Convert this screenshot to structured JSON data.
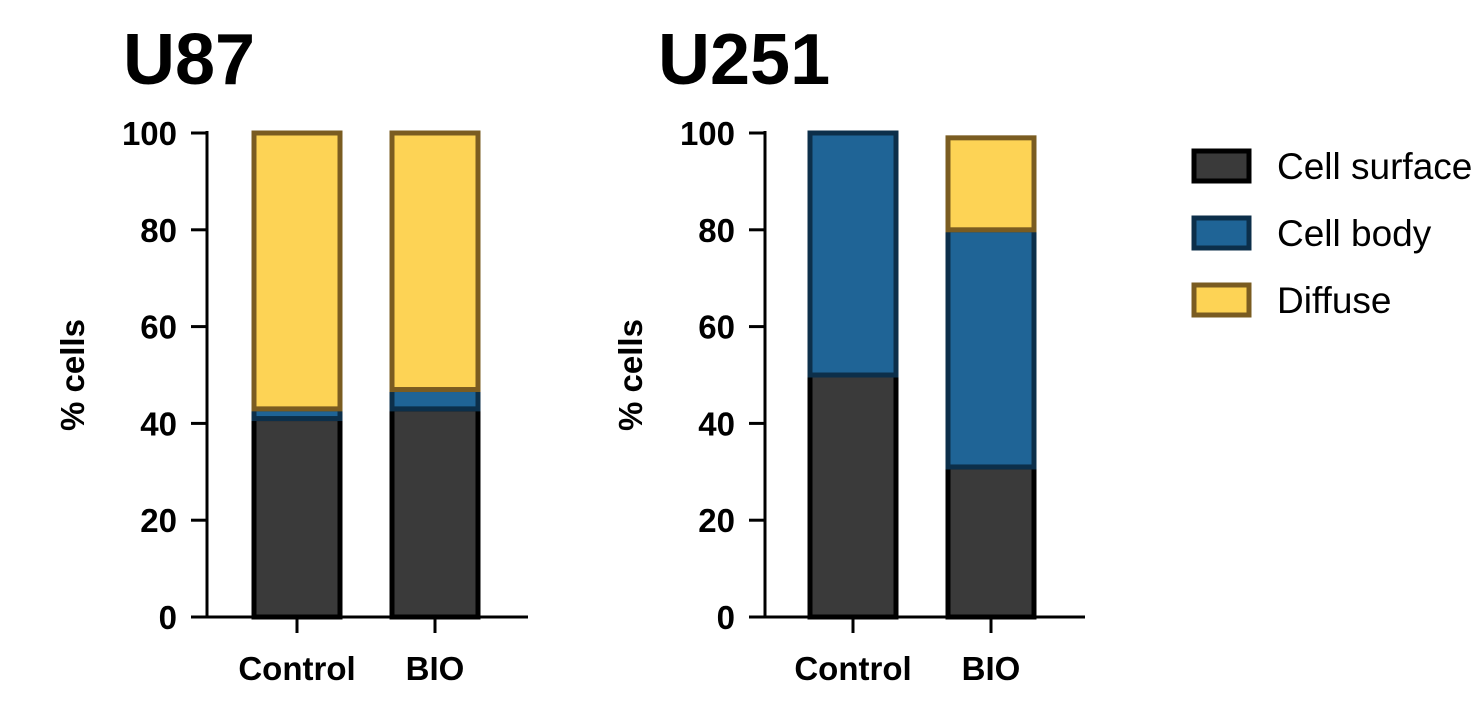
{
  "chart_data": [
    {
      "type": "bar",
      "stacked": true,
      "title": "U87",
      "ylabel": "% cells",
      "ylim": [
        0,
        100
      ],
      "yticks": [
        0,
        20,
        40,
        60,
        80,
        100
      ],
      "categories": [
        "Control",
        "BIO"
      ],
      "series": [
        {
          "name": "Cell surface",
          "values": [
            41,
            43
          ]
        },
        {
          "name": "Cell body",
          "values": [
            2,
            4
          ]
        },
        {
          "name": "Diffuse",
          "values": [
            57,
            53
          ]
        }
      ]
    },
    {
      "type": "bar",
      "stacked": true,
      "title": "U251",
      "ylabel": "% cells",
      "ylim": [
        0,
        100
      ],
      "yticks": [
        0,
        20,
        40,
        60,
        80,
        100
      ],
      "categories": [
        "Control",
        "BIO"
      ],
      "series": [
        {
          "name": "Cell surface",
          "values": [
            50,
            31
          ]
        },
        {
          "name": "Cell body",
          "values": [
            50,
            49
          ]
        },
        {
          "name": "Diffuse",
          "values": [
            0,
            19
          ]
        }
      ]
    }
  ],
  "legend": {
    "position": "right",
    "items": [
      {
        "label": "Cell surface",
        "fill": "#3a3a3a",
        "stroke": "#000000"
      },
      {
        "label": "Cell body",
        "fill": "#1f6496",
        "stroke": "#0c2f4a"
      },
      {
        "label": "Diffuse",
        "fill": "#fdd355",
        "stroke": "#7a5c21"
      }
    ]
  }
}
